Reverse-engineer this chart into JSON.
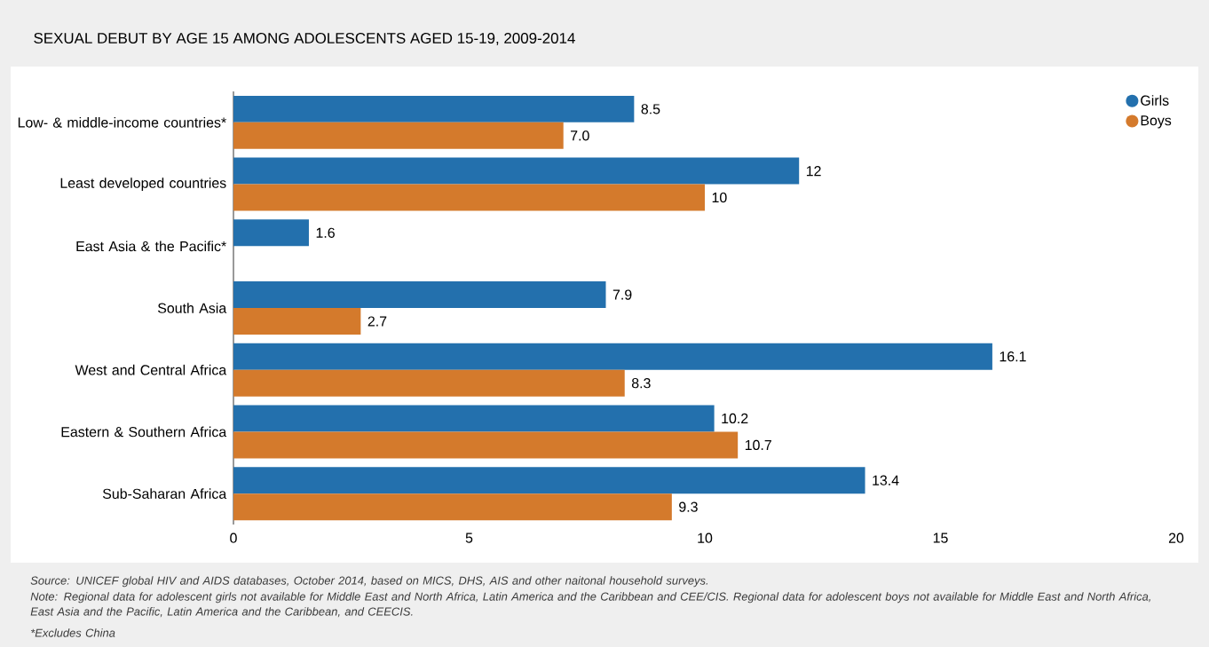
{
  "chart_data": {
    "type": "bar",
    "orientation": "horizontal",
    "title": "SEXUAL DEBUT BY AGE 15 AMONG ADOLESCENTS AGED 15-19, 2009-2014",
    "categories": [
      "Low- & middle-income countries*",
      "Least developed countries",
      "East Asia & the Pacific*",
      "South Asia",
      "West and Central Africa",
      "Eastern & Southern Africa",
      "Sub-Saharan Africa"
    ],
    "series": [
      {
        "name": "Girls",
        "color": "#2370ad",
        "values": [
          8.5,
          12,
          1.6,
          7.9,
          16.1,
          10.2,
          13.4
        ],
        "value_labels": [
          "8.5",
          "12",
          "1.6",
          "7.9",
          "16.1",
          "10.2",
          "13.4"
        ]
      },
      {
        "name": "Boys",
        "color": "#d47a2c",
        "values": [
          7,
          10,
          null,
          2.7,
          8.3,
          10.7,
          9.3
        ],
        "value_labels": [
          "7.0",
          "10",
          null,
          "2.7",
          "8.3",
          "10.7",
          "9.3"
        ]
      }
    ],
    "xlim": [
      0,
      20
    ],
    "xticks": [
      0,
      5,
      10,
      15,
      20
    ],
    "legend": "top right",
    "grid": false,
    "annotations": [
      "Source: UNICEF global HIV and AIDS databases, October 2014, based on MICS, DHS, AIS and other naitonal household surveys.",
      "Note: Regional data for adolescent girls not available for Middle East and North Africa, Latin America and the Caribbean and CEE/CIS. Regional data for adolescent boys not available for Middle East and North Africa, East Asia and the Pacific, Latin America and the Caribbean, and CEECIS.",
      "*Excludes China"
    ]
  }
}
